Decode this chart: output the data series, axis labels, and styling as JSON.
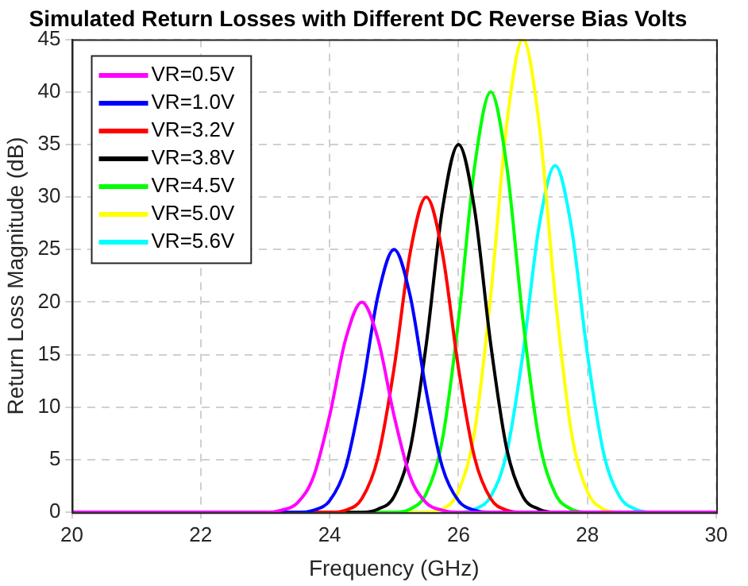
{
  "chart_data": {
    "type": "line",
    "title": "Simulated Return Losses with Different DC Reverse Bias Volts",
    "xlabel": "Frequency (GHz)",
    "ylabel": "Return Loss Magnitude (dB)",
    "xlim": [
      20,
      30
    ],
    "xticks": [
      20,
      22,
      24,
      26,
      28,
      30
    ],
    "ylim": [
      0,
      45
    ],
    "yticks": [
      0,
      5,
      10,
      15,
      20,
      25,
      30,
      35,
      40,
      45
    ],
    "grid": true,
    "legend": "top left",
    "marker": "none",
    "line_style": "solid",
    "series": [
      {
        "name": "VR=0.5V",
        "color": "#ff00ff",
        "x": [
          20,
          23,
          23.25,
          23.5,
          23.75,
          24,
          24.25,
          24.5,
          24.75,
          25,
          25.25,
          25.5,
          25.75,
          26,
          30
        ],
        "values": [
          0,
          0,
          0.2,
          0.9,
          3.4,
          9.2,
          16.5,
          20,
          16.5,
          9.2,
          3.4,
          0.9,
          0.2,
          0,
          0
        ]
      },
      {
        "name": "VR=1.0V",
        "color": "#0000ff",
        "x": [
          20,
          23.5,
          23.75,
          24,
          24.25,
          24.5,
          24.75,
          25,
          25.25,
          25.5,
          25.75,
          26,
          26.25,
          26.5,
          30
        ],
        "values": [
          0,
          0,
          0.2,
          1.1,
          4.3,
          11.5,
          20.6,
          25,
          20.6,
          11.5,
          4.3,
          1.1,
          0.2,
          0,
          0
        ]
      },
      {
        "name": "VR=3.2V",
        "color": "#ff0000",
        "x": [
          20,
          24,
          24.25,
          24.5,
          24.75,
          25,
          25.25,
          25.5,
          25.75,
          26,
          26.25,
          26.5,
          26.75,
          27,
          30
        ],
        "values": [
          0,
          0,
          0.2,
          1.3,
          5.2,
          13.7,
          24.7,
          30,
          24.7,
          13.7,
          5.2,
          1.3,
          0.2,
          0,
          0
        ]
      },
      {
        "name": "VR=3.8V",
        "color": "#000000",
        "x": [
          20,
          24.5,
          24.75,
          25,
          25.25,
          25.5,
          25.75,
          26,
          26.25,
          26.5,
          26.75,
          27,
          27.25,
          27.5,
          30
        ],
        "values": [
          0,
          0,
          0.3,
          1.5,
          6,
          16,
          28.8,
          35,
          28.8,
          16,
          6,
          1.5,
          0.3,
          0,
          0
        ]
      },
      {
        "name": "VR=4.5V",
        "color": "#00ff00",
        "x": [
          20,
          25,
          25.25,
          25.5,
          25.75,
          26,
          26.25,
          26.5,
          26.75,
          27,
          27.25,
          27.5,
          27.75,
          28,
          30
        ],
        "values": [
          0,
          0,
          0.3,
          1.8,
          6.9,
          18.3,
          32.9,
          40,
          32.9,
          18.3,
          6.9,
          1.8,
          0.3,
          0,
          0
        ]
      },
      {
        "name": "VR=5.0V",
        "color": "#ffff00",
        "x": [
          20,
          25.5,
          25.75,
          26,
          26.25,
          26.5,
          26.75,
          27,
          27.25,
          27.5,
          27.75,
          28,
          28.25,
          28.5,
          30
        ],
        "values": [
          0,
          0,
          0.3,
          2,
          7.7,
          20.6,
          37,
          45,
          37,
          20.6,
          7.7,
          2,
          0.3,
          0,
          0
        ]
      },
      {
        "name": "VR=5.6V",
        "color": "#00ffff",
        "x": [
          20,
          26,
          26.25,
          26.5,
          26.75,
          27,
          27.25,
          27.5,
          27.75,
          28,
          28.25,
          28.5,
          28.75,
          29,
          30
        ],
        "values": [
          0,
          0,
          0.3,
          1.5,
          5.7,
          15.1,
          27.2,
          33,
          27.2,
          15.1,
          5.7,
          1.5,
          0.3,
          0,
          0
        ]
      }
    ]
  }
}
